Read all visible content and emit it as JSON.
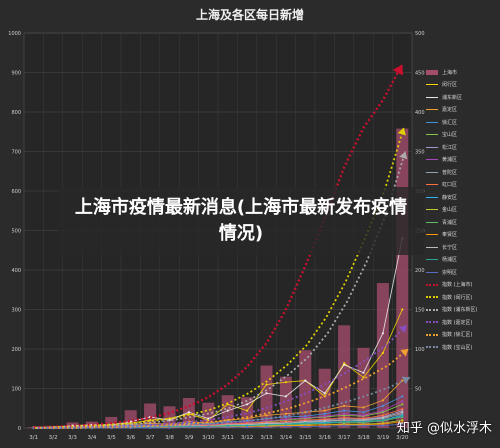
{
  "chart_data": {
    "type": "bar+line",
    "title": "上海及各区每日新增",
    "categories": [
      "3/1",
      "3/2",
      "3/3",
      "3/4",
      "3/5",
      "3/6",
      "3/7",
      "3/8",
      "3/9",
      "3/10",
      "3/11",
      "3/12",
      "3/13",
      "3/14",
      "3/15",
      "3/16",
      "3/17",
      "3/18",
      "3/19",
      "3/20"
    ],
    "y_left_ticks": [
      "1000",
      "900",
      "800",
      "700",
      "600",
      "500",
      "400",
      "300",
      "200",
      "100",
      "0"
    ],
    "y_left_range": [
      0,
      1000
    ],
    "y_right_ticks": [
      "500",
      "450",
      "400",
      "350",
      "300",
      "250",
      "200",
      "150",
      "100",
      "50",
      "0"
    ],
    "y_right_range": [
      0,
      500
    ],
    "bar_series": {
      "name": "上海市",
      "color": "#a34d6b",
      "values": [
        2,
        5,
        14,
        16,
        28,
        45,
        62,
        55,
        76,
        64,
        83,
        78,
        158,
        130,
        197,
        150,
        260,
        203,
        367,
        758
      ]
    },
    "series": [
      {
        "name": "闵行区",
        "color": "#f2d700",
        "values": [
          0,
          1,
          2,
          3,
          5,
          6,
          10,
          12,
          18,
          10,
          30,
          22,
          55,
          58,
          60,
          40,
          82,
          64,
          95,
          150
        ]
      },
      {
        "name": "浦东新区",
        "color": "#e8e8e8",
        "values": [
          1,
          1,
          3,
          4,
          4,
          8,
          14,
          10,
          20,
          12,
          22,
          30,
          44,
          40,
          60,
          44,
          80,
          70,
          120,
          240
        ]
      },
      {
        "name": "嘉定区",
        "color": "#f0a030",
        "values": [
          0,
          0,
          1,
          2,
          3,
          4,
          6,
          5,
          8,
          6,
          10,
          12,
          16,
          18,
          20,
          22,
          28,
          26,
          35,
          60
        ]
      },
      {
        "name": "徐汇区",
        "color": "#4a90e2",
        "values": [
          0,
          0,
          1,
          1,
          2,
          3,
          4,
          4,
          6,
          5,
          8,
          9,
          12,
          14,
          15,
          18,
          22,
          20,
          28,
          40
        ]
      },
      {
        "name": "宝山区",
        "color": "#8bc34a",
        "values": [
          0,
          0,
          0,
          1,
          1,
          2,
          3,
          3,
          4,
          4,
          5,
          6,
          8,
          10,
          12,
          14,
          16,
          15,
          20,
          30
        ]
      },
      {
        "name": "松江区",
        "color": "#9c9ccc",
        "values": [
          0,
          0,
          0,
          1,
          1,
          1,
          2,
          2,
          3,
          3,
          4,
          5,
          6,
          8,
          9,
          10,
          12,
          11,
          14,
          22
        ]
      },
      {
        "name": "黄浦区",
        "color": "#ab47bc",
        "values": [
          0,
          0,
          1,
          1,
          2,
          2,
          3,
          4,
          5,
          4,
          6,
          7,
          9,
          11,
          13,
          15,
          18,
          16,
          22,
          34
        ]
      },
      {
        "name": "普陀区",
        "color": "#90a4ae",
        "values": [
          0,
          0,
          0,
          0,
          1,
          1,
          2,
          2,
          3,
          3,
          4,
          4,
          5,
          6,
          7,
          8,
          10,
          9,
          12,
          18
        ]
      },
      {
        "name": "虹口区",
        "color": "#ff7043",
        "values": [
          0,
          0,
          0,
          1,
          1,
          2,
          2,
          3,
          4,
          3,
          5,
          6,
          7,
          8,
          10,
          11,
          13,
          12,
          16,
          24
        ]
      },
      {
        "name": "静安区",
        "color": "#29b6f6",
        "values": [
          0,
          0,
          0,
          0,
          1,
          1,
          1,
          2,
          2,
          2,
          3,
          3,
          4,
          5,
          6,
          7,
          8,
          8,
          10,
          16
        ]
      },
      {
        "name": "金山区",
        "color": "#c0ca33",
        "values": [
          0,
          0,
          0,
          0,
          0,
          1,
          1,
          1,
          1,
          1,
          2,
          2,
          3,
          3,
          4,
          4,
          5,
          5,
          6,
          10
        ]
      },
      {
        "name": "青浦区",
        "color": "#66bb6a",
        "values": [
          0,
          0,
          0,
          0,
          1,
          1,
          1,
          2,
          2,
          2,
          3,
          3,
          4,
          4,
          5,
          6,
          7,
          7,
          9,
          14
        ]
      },
      {
        "name": "奉贤区",
        "color": "#ff9800",
        "values": [
          0,
          0,
          0,
          0,
          0,
          0,
          1,
          1,
          1,
          1,
          1,
          2,
          2,
          3,
          3,
          4,
          4,
          4,
          5,
          8
        ]
      },
      {
        "name": "长宁区",
        "color": "#bdbdbd",
        "values": [
          0,
          0,
          0,
          0,
          1,
          1,
          2,
          2,
          3,
          2,
          4,
          4,
          6,
          6,
          8,
          9,
          10,
          10,
          13,
          20
        ]
      },
      {
        "name": "杨浦区",
        "color": "#26a69a",
        "values": [
          0,
          0,
          0,
          0,
          1,
          1,
          1,
          2,
          2,
          2,
          3,
          3,
          4,
          5,
          6,
          6,
          8,
          8,
          10,
          15
        ]
      },
      {
        "name": "崇明区",
        "color": "#5c6bc0",
        "values": [
          0,
          0,
          0,
          0,
          0,
          0,
          0,
          0,
          1,
          1,
          1,
          1,
          1,
          2,
          2,
          2,
          3,
          3,
          3,
          5
        ]
      }
    ],
    "trend_series": [
      {
        "name": "指数 (上海市)",
        "color": "#c8102e",
        "values": [
          2,
          3,
          5,
          8,
          12,
          18,
          26,
          38,
          55,
          78,
          110,
          155,
          215,
          300,
          410,
          530,
          660,
          760,
          830,
          920
        ]
      },
      {
        "name": "指数 (闵行区)",
        "color": "#e0d000",
        "values": [
          0,
          1,
          2,
          3,
          4,
          6,
          9,
          12,
          17,
          23,
          32,
          44,
          60,
          80,
          105,
          140,
          185,
          240,
          300,
          380
        ]
      },
      {
        "name": "指数 (浦东新区)",
        "color": "#aaaaaa",
        "values": [
          0,
          1,
          1,
          2,
          3,
          5,
          7,
          10,
          14,
          19,
          26,
          36,
          50,
          68,
          90,
          120,
          160,
          210,
          270,
          350
        ]
      },
      {
        "name": "指数 (嘉定区)",
        "color": "#8a4fbf",
        "values": [
          0,
          0,
          1,
          1,
          2,
          3,
          4,
          6,
          8,
          11,
          15,
          20,
          27,
          36,
          46,
          58,
          72,
          88,
          106,
          130
        ]
      },
      {
        "name": "指数 (徐汇区)",
        "color": "#f0a030",
        "values": [
          0,
          0,
          0,
          1,
          1,
          2,
          3,
          4,
          6,
          8,
          11,
          15,
          20,
          26,
          34,
          43,
          54,
          66,
          80,
          100
        ]
      },
      {
        "name": "指数 (宝山区)",
        "color": "#7a8aa0",
        "values": [
          0,
          0,
          0,
          1,
          1,
          2,
          2,
          3,
          4,
          6,
          8,
          10,
          13,
          17,
          22,
          28,
          35,
          43,
          52,
          64
        ]
      }
    ],
    "grid": true,
    "legend_position": "right"
  },
  "banner": {
    "text": "上海市疫情最新消息(上海市最新发布疫情情况)"
  },
  "watermark": "知乎 @似水浮木"
}
